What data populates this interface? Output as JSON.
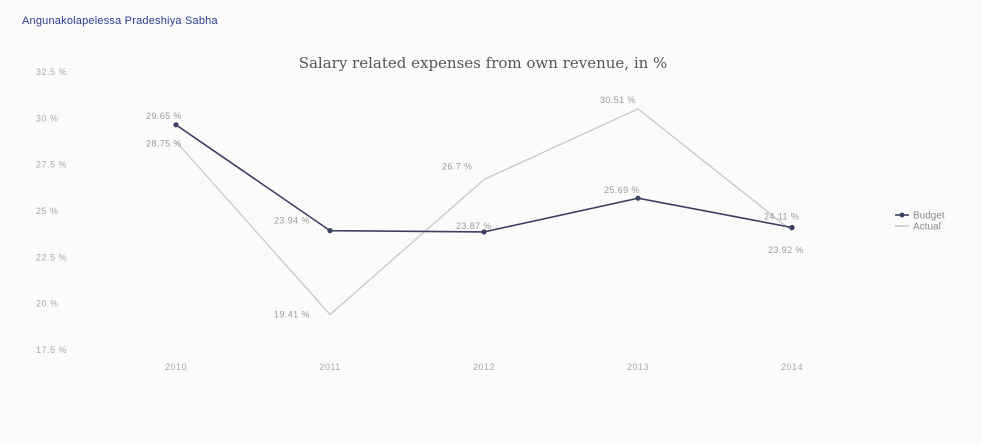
{
  "header": {
    "org": "Angunakolapelessa Pradeshiya Sabha"
  },
  "chart_data": {
    "type": "line",
    "title": "Salary related expenses from own revenue, in %",
    "categories": [
      "2010",
      "2011",
      "2012",
      "2013",
      "2014"
    ],
    "y_ticks": [
      "32.5 %",
      "30 %",
      "27.5 %",
      "25 %",
      "22.5 %",
      "20 %",
      "17.5 %"
    ],
    "ylim": [
      17.5,
      32.5
    ],
    "grid": false,
    "legend_position": "right",
    "series": [
      {
        "name": "Budget",
        "values": [
          29.65,
          23.94,
          23.87,
          25.69,
          24.11
        ],
        "labels": [
          "29.65 %",
          "23.94 %",
          "23.87 %",
          "25.69 %",
          "24.11 %"
        ],
        "color": "#3b3f63",
        "marker": true
      },
      {
        "name": "Actual",
        "values": [
          28.75,
          19.41,
          26.7,
          30.51,
          23.92
        ],
        "labels": [
          "28.75 %",
          "19.41 %",
          "26.7 %",
          "30.51 %",
          "23.92 %"
        ],
        "color": "#c7c7c7",
        "marker": false
      }
    ]
  }
}
